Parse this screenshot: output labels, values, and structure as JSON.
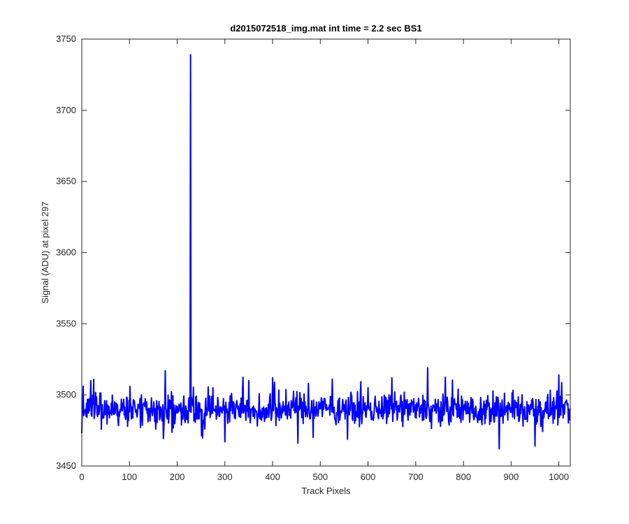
{
  "chart_data": {
    "type": "line",
    "title": "d2015072518_img.mat int time = 2.2 sec   BS1",
    "xlabel": "Track Pixels",
    "ylabel": "Signal (ADU) at pixel 297",
    "xlim": [
      0,
      1024
    ],
    "ylim": [
      3450,
      3750
    ],
    "xticks": [
      0,
      100,
      200,
      300,
      400,
      500,
      600,
      700,
      800,
      900,
      1000
    ],
    "yticks": [
      3450,
      3500,
      3550,
      3600,
      3650,
      3700,
      3750
    ],
    "grid": false,
    "legend": "none",
    "series": [
      {
        "color": "#0000ff",
        "baseline": 3490,
        "noise_amplitude": 10,
        "n_points": 1024,
        "spike": {
          "x": 228,
          "y": 3739
        },
        "x": [
          0,
          25,
          50,
          75,
          100,
          125,
          150,
          175,
          200,
          225,
          228,
          250,
          275,
          300,
          325,
          350,
          375,
          400,
          425,
          450,
          475,
          500,
          525,
          550,
          575,
          600,
          625,
          650,
          675,
          700,
          725,
          750,
          775,
          800,
          825,
          850,
          875,
          900,
          925,
          950,
          975,
          1000,
          1023
        ],
        "y": [
          3473,
          3511,
          3486,
          3493,
          3488,
          3500,
          3489,
          3517,
          3492,
          3498,
          3739,
          3490,
          3505,
          3467,
          3496,
          3510,
          3483,
          3512,
          3492,
          3488,
          3508,
          3494,
          3511,
          3493,
          3488,
          3505,
          3490,
          3512,
          3486,
          3493,
          3519,
          3487,
          3498,
          3490,
          3485,
          3492,
          3462,
          3491,
          3478,
          3464,
          3487,
          3514,
          3482
        ]
      }
    ]
  }
}
